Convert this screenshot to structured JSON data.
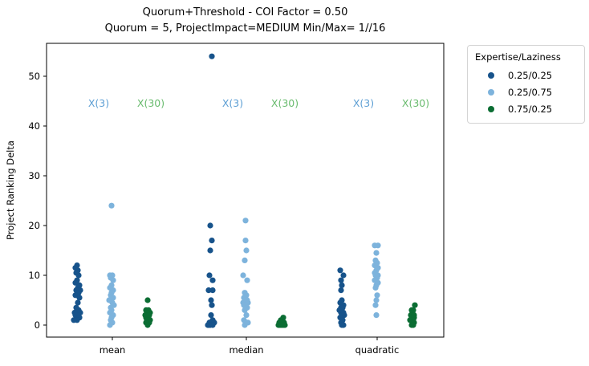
{
  "title": {
    "line1": "Quorum+Threshold - COI Factor = 0.50",
    "line2": "Quorum = 5, ProjectImpact=MEDIUM Min/Max= 1//16"
  },
  "legend": {
    "title": "Expertise/Laziness",
    "entries": [
      {
        "label": "0.25/0.25",
        "color": "#17538b"
      },
      {
        "label": "0.25/0.75",
        "color": "#7db3dc"
      },
      {
        "label": "0.75/0.25",
        "color": "#0b6d33"
      }
    ]
  },
  "chart_data": {
    "type": "scatter",
    "title": "Quorum+Threshold - COI Factor = 0.50 / Quorum = 5, ProjectImpact=MEDIUM Min/Max= 1//16",
    "xlabel": "",
    "ylabel": "Project Ranking Delta",
    "ylim": [
      -2.5,
      56.5
    ],
    "yticks": [
      0,
      10,
      20,
      30,
      40,
      50
    ],
    "categories": [
      "mean",
      "median",
      "quadratic"
    ],
    "legend_position": "upper right outside",
    "grid": false,
    "annotations": [
      {
        "text": "X(3)",
        "color": "#5d9fd4",
        "y": 44.7,
        "per_category_dx": -17
      },
      {
        "text": "X(30)",
        "color": "#69bb6e",
        "y": 44.7,
        "per_category_dx": 48
      }
    ],
    "series": [
      {
        "name": "0.25/0.25",
        "color": "#17538b",
        "points": {
          "mean": [
            [
              12,
              0
            ],
            [
              11.5,
              -2
            ],
            [
              11,
              1
            ],
            [
              10.5,
              -1
            ],
            [
              10,
              2
            ],
            [
              9,
              0
            ],
            [
              8.5,
              -2
            ],
            [
              8,
              3
            ],
            [
              7.5,
              1
            ],
            [
              7,
              4
            ],
            [
              7,
              -1
            ],
            [
              6.5,
              2
            ],
            [
              6,
              -2
            ],
            [
              5.5,
              3
            ],
            [
              4.5,
              1
            ],
            [
              3.5,
              -1
            ],
            [
              3,
              2
            ],
            [
              2.5,
              -3
            ],
            [
              2.5,
              4
            ],
            [
              2,
              1
            ],
            [
              2,
              -2
            ],
            [
              1.5,
              3
            ],
            [
              1,
              0
            ],
            [
              1,
              -4
            ]
          ],
          "median": [
            [
              54,
              1
            ],
            [
              20,
              -1
            ],
            [
              17,
              1
            ],
            [
              15,
              -1
            ],
            [
              10,
              -2
            ],
            [
              9,
              2
            ],
            [
              7,
              -3
            ],
            [
              7,
              2
            ],
            [
              5,
              0
            ],
            [
              4,
              1
            ],
            [
              2,
              0
            ],
            [
              1,
              2
            ],
            [
              0.5,
              -2
            ],
            [
              0.5,
              1
            ],
            [
              0.5,
              4
            ],
            [
              0,
              -4
            ],
            [
              0,
              -1
            ],
            [
              0,
              -3
            ],
            [
              0,
              2
            ]
          ],
          "quadratic": [
            [
              11,
              -2
            ],
            [
              10,
              2
            ],
            [
              9,
              -1
            ],
            [
              8,
              0
            ],
            [
              7,
              -1
            ],
            [
              5,
              0
            ],
            [
              4.5,
              -2
            ],
            [
              4,
              2
            ],
            [
              4,
              0
            ],
            [
              3.5,
              -1
            ],
            [
              3.5,
              1
            ],
            [
              3,
              -3
            ],
            [
              2.5,
              2
            ],
            [
              2.5,
              -1
            ],
            [
              2,
              3
            ],
            [
              2,
              0
            ],
            [
              1.5,
              -2
            ],
            [
              1,
              1
            ],
            [
              0.5,
              -1
            ],
            [
              0,
              2
            ],
            [
              0,
              0
            ]
          ]
        }
      },
      {
        "name": "0.25/0.75",
        "color": "#7db3dc",
        "points": {
          "mean": [
            [
              24,
              0
            ],
            [
              10,
              -2
            ],
            [
              10,
              1
            ],
            [
              9.5,
              -1
            ],
            [
              9,
              2
            ],
            [
              8,
              0
            ],
            [
              7.5,
              -2
            ],
            [
              7,
              2
            ],
            [
              6.5,
              0
            ],
            [
              6,
              -1
            ],
            [
              5.5,
              2
            ],
            [
              5,
              -3
            ],
            [
              4.5,
              1
            ],
            [
              4,
              3
            ],
            [
              3.5,
              -1
            ],
            [
              3,
              0
            ],
            [
              2.5,
              -2
            ],
            [
              2,
              2
            ],
            [
              1.5,
              0
            ],
            [
              1,
              -1
            ],
            [
              0.5,
              1
            ],
            [
              0,
              -2
            ]
          ],
          "median": [
            [
              21,
              0
            ],
            [
              17,
              0
            ],
            [
              15,
              1
            ],
            [
              13,
              -1
            ],
            [
              10,
              -3
            ],
            [
              9,
              2
            ],
            [
              6.5,
              -1
            ],
            [
              6,
              1
            ],
            [
              5.5,
              -2
            ],
            [
              5,
              2
            ],
            [
              4.5,
              -3
            ],
            [
              4.5,
              3
            ],
            [
              4,
              0
            ],
            [
              4,
              -2
            ],
            [
              3.5,
              2
            ],
            [
              3,
              -1
            ],
            [
              2,
              1
            ],
            [
              1,
              -2
            ],
            [
              0.5,
              1
            ],
            [
              0.5,
              3
            ],
            [
              0,
              -1
            ]
          ],
          "quadratic": [
            [
              16,
              -2
            ],
            [
              16,
              2
            ],
            [
              14.5,
              0
            ],
            [
              13,
              -1
            ],
            [
              12.5,
              1
            ],
            [
              12,
              -2
            ],
            [
              11.5,
              2
            ],
            [
              11,
              0
            ],
            [
              10.5,
              -2
            ],
            [
              10,
              2
            ],
            [
              10,
              -1
            ],
            [
              9.5,
              1
            ],
            [
              9,
              -2
            ],
            [
              8.5,
              2
            ],
            [
              8,
              0
            ],
            [
              7.5,
              -1
            ],
            [
              6,
              1
            ],
            [
              5,
              0
            ],
            [
              4,
              -1
            ],
            [
              2,
              0
            ]
          ]
        }
      },
      {
        "name": "0.75/0.25",
        "color": "#0b6d33",
        "points": {
          "mean": [
            [
              5,
              0
            ],
            [
              3,
              -2
            ],
            [
              3,
              1
            ],
            [
              2.5,
              3
            ],
            [
              2.5,
              -1
            ],
            [
              2,
              0
            ],
            [
              2,
              -3
            ],
            [
              2,
              2
            ],
            [
              1.5,
              -2
            ],
            [
              1.5,
              1
            ],
            [
              1,
              3
            ],
            [
              1,
              -1
            ],
            [
              1,
              0
            ],
            [
              0.5,
              2
            ],
            [
              0.5,
              -2
            ],
            [
              0,
              0
            ]
          ],
          "median": [
            [
              1.5,
              2
            ],
            [
              1,
              -1
            ],
            [
              1,
              1
            ],
            [
              0.5,
              -3
            ],
            [
              0.5,
              0
            ],
            [
              0.5,
              3
            ],
            [
              0,
              -4
            ],
            [
              0,
              -2
            ],
            [
              0,
              0
            ],
            [
              0,
              2
            ],
            [
              0,
              4
            ]
          ],
          "quadratic": [
            [
              4,
              3
            ],
            [
              3,
              -1
            ],
            [
              3,
              1
            ],
            [
              2.5,
              0
            ],
            [
              2,
              -2
            ],
            [
              2,
              2
            ],
            [
              1.5,
              -1
            ],
            [
              1.5,
              2
            ],
            [
              1,
              1
            ],
            [
              1,
              -3
            ],
            [
              0.5,
              0
            ],
            [
              0.5,
              2
            ],
            [
              0,
              -1
            ],
            [
              0,
              1
            ]
          ]
        }
      }
    ]
  }
}
